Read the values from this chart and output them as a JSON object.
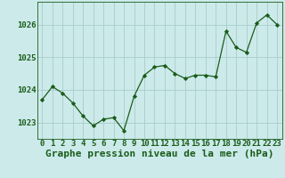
{
  "hours": [
    0,
    1,
    2,
    3,
    4,
    5,
    6,
    7,
    8,
    9,
    10,
    11,
    12,
    13,
    14,
    15,
    16,
    17,
    18,
    19,
    20,
    21,
    22,
    23
  ],
  "pressure": [
    1023.7,
    1024.1,
    1023.9,
    1023.6,
    1023.2,
    1022.9,
    1023.1,
    1023.15,
    1022.75,
    1023.8,
    1024.45,
    1024.7,
    1024.75,
    1024.5,
    1024.35,
    1024.45,
    1024.45,
    1024.4,
    1025.8,
    1025.3,
    1025.15,
    1026.05,
    1026.3,
    1026.0
  ],
  "ylim": [
    1022.5,
    1026.7
  ],
  "yticks": [
    1023,
    1024,
    1025,
    1026
  ],
  "xticks": [
    0,
    1,
    2,
    3,
    4,
    5,
    6,
    7,
    8,
    9,
    10,
    11,
    12,
    13,
    14,
    15,
    16,
    17,
    18,
    19,
    20,
    21,
    22,
    23
  ],
  "line_color": "#1a5c1a",
  "marker_color": "#1a5c1a",
  "bg_color": "#cceaea",
  "grid_color": "#aacccc",
  "xlabel": "Graphe pression niveau de la mer (hPa)",
  "xlabel_fontsize": 8,
  "tick_fontsize": 6.5,
  "ytick_fontsize": 6.5
}
